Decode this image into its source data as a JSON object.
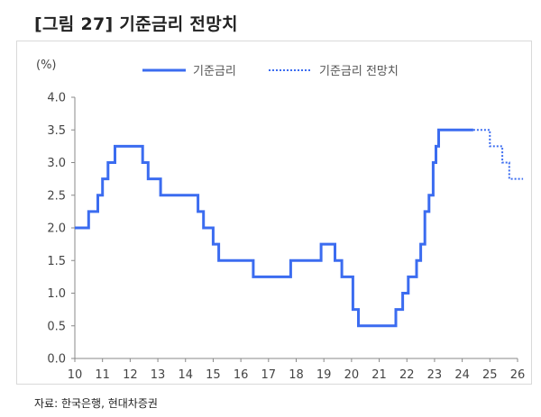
{
  "title": "[그림 27] 기준금리 전망치",
  "source": "자료: 한국은행, 현대차증권",
  "chart_data": {
    "type": "line",
    "ylabel": "(%)",
    "ylim": [
      0,
      4
    ],
    "yticks": [
      "0.0",
      "0.5",
      "1.0",
      "1.5",
      "2.0",
      "2.5",
      "3.0",
      "3.5",
      "4.0"
    ],
    "xlim": [
      10,
      26
    ],
    "xticks": [
      "10",
      "11",
      "12",
      "13",
      "14",
      "15",
      "16",
      "17",
      "18",
      "19",
      "20",
      "21",
      "22",
      "23",
      "24",
      "25",
      "26"
    ],
    "grid": false,
    "legend": "top-center",
    "series": [
      {
        "name": "기준금리",
        "style": "solid",
        "color": "#3b6cf0",
        "step": true,
        "points": [
          [
            10.0,
            2.0
          ],
          [
            10.5,
            2.25
          ],
          [
            10.83,
            2.5
          ],
          [
            11.0,
            2.75
          ],
          [
            11.2,
            3.0
          ],
          [
            11.45,
            3.25
          ],
          [
            12.45,
            3.0
          ],
          [
            12.65,
            2.75
          ],
          [
            13.1,
            2.5
          ],
          [
            14.45,
            2.25
          ],
          [
            14.65,
            2.0
          ],
          [
            15.0,
            1.75
          ],
          [
            15.2,
            1.5
          ],
          [
            16.45,
            1.25
          ],
          [
            17.8,
            1.5
          ],
          [
            18.9,
            1.75
          ],
          [
            19.4,
            1.5
          ],
          [
            19.65,
            1.25
          ],
          [
            20.05,
            0.75
          ],
          [
            20.25,
            0.5
          ],
          [
            21.6,
            0.75
          ],
          [
            21.85,
            1.0
          ],
          [
            22.05,
            1.25
          ],
          [
            22.35,
            1.5
          ],
          [
            22.5,
            1.75
          ],
          [
            22.65,
            2.25
          ],
          [
            22.8,
            2.5
          ],
          [
            22.95,
            3.0
          ],
          [
            23.05,
            3.25
          ],
          [
            23.15,
            3.5
          ],
          [
            24.4,
            3.5
          ]
        ]
      },
      {
        "name": "기준금리 전망치",
        "style": "dotted",
        "color": "#3b6cf0",
        "step": true,
        "points": [
          [
            24.4,
            3.5
          ],
          [
            25.0,
            3.25
          ],
          [
            25.45,
            3.0
          ],
          [
            25.7,
            2.75
          ],
          [
            26.2,
            2.75
          ]
        ]
      }
    ]
  }
}
